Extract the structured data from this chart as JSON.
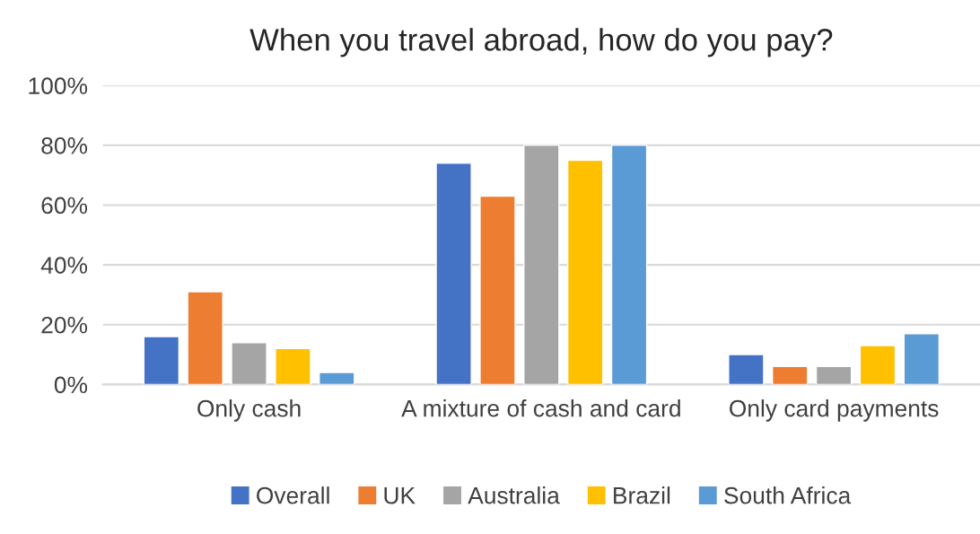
{
  "chart_data": {
    "type": "bar",
    "title": "When you travel abroad, how do you pay?",
    "categories": [
      "Only cash",
      "A mixture of cash and card",
      "Only card payments"
    ],
    "series": [
      {
        "name": "Overall",
        "color": "#4472c4",
        "values": [
          16,
          74,
          10
        ]
      },
      {
        "name": "UK",
        "color": "#ed7d31",
        "values": [
          31,
          63,
          6
        ]
      },
      {
        "name": "Australia",
        "color": "#a5a5a5",
        "values": [
          14,
          80,
          6
        ]
      },
      {
        "name": "Brazil",
        "color": "#ffc000",
        "values": [
          12,
          75,
          13
        ]
      },
      {
        "name": "South Africa",
        "color": "#5b9bd5",
        "values": [
          4,
          80,
          17
        ]
      }
    ],
    "ylim": [
      0,
      100
    ],
    "yticks": [
      {
        "value": 0,
        "label": "0%"
      },
      {
        "value": 20,
        "label": "20%"
      },
      {
        "value": 40,
        "label": "40%"
      },
      {
        "value": 60,
        "label": "60%"
      },
      {
        "value": 80,
        "label": "80%"
      },
      {
        "value": 100,
        "label": "100%"
      }
    ],
    "grid": "y",
    "legend": "bottom"
  }
}
